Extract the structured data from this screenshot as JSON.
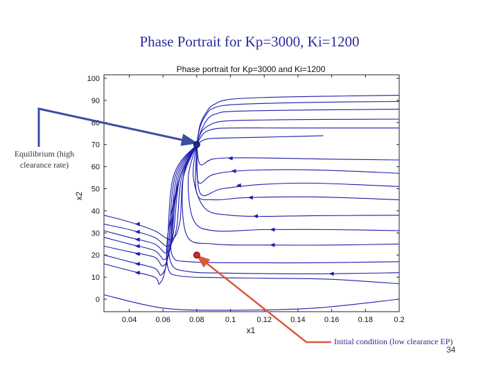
{
  "slide": {
    "title": "Phase Portrait for Kp=3000, Ki=1200",
    "page_number": "34"
  },
  "annotations": {
    "equilibrium": "Equilibrium (high clearance rate)",
    "initial_condition": "Initial condition (low clearance EP)",
    "equilibrium_point": [
      0.08,
      70
    ],
    "initial_point": [
      0.08,
      20
    ]
  },
  "colors": {
    "trajectory": "#1c1cae",
    "eq_arrow": "#3b4ea0",
    "init_arrow": "#d9593a",
    "eq_marker": "#1e2a8a",
    "init_marker": "#cc2a2a",
    "title": "#2a2a9e"
  },
  "chart_data": {
    "type": "line",
    "title": "Phase portrait for Kp=3000 and Ki=1200",
    "xlabel": "x1",
    "ylabel": "x2",
    "xlim": [
      0.025,
      0.2
    ],
    "ylim": [
      -5,
      100
    ],
    "xticks": [
      0.04,
      0.06,
      0.08,
      0.1,
      0.12,
      0.14,
      0.16,
      0.18,
      0.2
    ],
    "xtick_labels": [
      "0.04",
      "0.06",
      "0.08",
      "0.1",
      "0.12",
      "0.14",
      "0.16",
      "0.18",
      "0.2"
    ],
    "yticks": [
      0,
      10,
      20,
      30,
      40,
      50,
      60,
      70,
      80,
      90,
      100
    ],
    "ytick_labels": [
      "0",
      "10",
      "20",
      "30",
      "40",
      "50",
      "60",
      "70",
      "80",
      "90",
      "100"
    ],
    "grid": false,
    "series": [
      {
        "name": "traj-top-1",
        "points": [
          [
            0.08,
            70
          ],
          [
            0.082,
            79
          ],
          [
            0.086,
            85
          ],
          [
            0.09,
            88
          ],
          [
            0.1,
            90.5
          ],
          [
            0.13,
            91.5
          ],
          [
            0.17,
            92
          ],
          [
            0.2,
            92.3
          ]
        ]
      },
      {
        "name": "traj-top-2",
        "points": [
          [
            0.08,
            70
          ],
          [
            0.082,
            78
          ],
          [
            0.086,
            84
          ],
          [
            0.09,
            86.5
          ],
          [
            0.1,
            88
          ],
          [
            0.13,
            88.8
          ],
          [
            0.17,
            89.3
          ],
          [
            0.2,
            89.5
          ]
        ]
      },
      {
        "name": "traj-top-3",
        "points": [
          [
            0.08,
            70
          ],
          [
            0.083,
            77
          ],
          [
            0.087,
            82
          ],
          [
            0.092,
            84
          ],
          [
            0.1,
            85
          ],
          [
            0.13,
            85.5
          ],
          [
            0.17,
            85.8
          ],
          [
            0.2,
            86
          ]
        ]
      },
      {
        "name": "traj-top-4",
        "points": [
          [
            0.08,
            70
          ],
          [
            0.083,
            76
          ],
          [
            0.088,
            79
          ],
          [
            0.095,
            80.5
          ],
          [
            0.11,
            81
          ],
          [
            0.14,
            81.3
          ],
          [
            0.17,
            81.4
          ],
          [
            0.2,
            81.5
          ]
        ]
      },
      {
        "name": "traj-top-5",
        "points": [
          [
            0.08,
            70
          ],
          [
            0.084,
            75
          ],
          [
            0.09,
            77
          ],
          [
            0.1,
            77.5
          ],
          [
            0.13,
            77.5
          ],
          [
            0.17,
            77.5
          ],
          [
            0.2,
            77.5
          ]
        ]
      },
      {
        "name": "traj-top-6",
        "points": [
          [
            0.08,
            70
          ],
          [
            0.086,
            72.5
          ],
          [
            0.1,
            73
          ],
          [
            0.13,
            73.5
          ],
          [
            0.155,
            74
          ]
        ]
      },
      {
        "name": "traj-mid-1",
        "points": [
          [
            0.2,
            63
          ],
          [
            0.15,
            63.5
          ],
          [
            0.11,
            64
          ],
          [
            0.09,
            63.5
          ],
          [
            0.082,
            61
          ],
          [
            0.08,
            70
          ]
        ]
      },
      {
        "name": "traj-mid-2",
        "points": [
          [
            0.2,
            57
          ],
          [
            0.15,
            58.5
          ],
          [
            0.11,
            58.3
          ],
          [
            0.09,
            56.5
          ],
          [
            0.081,
            53
          ],
          [
            0.08,
            70
          ]
        ]
      },
      {
        "name": "traj-mid-3",
        "points": [
          [
            0.2,
            51
          ],
          [
            0.15,
            52.5
          ],
          [
            0.12,
            52
          ],
          [
            0.095,
            50
          ],
          [
            0.082,
            48
          ],
          [
            0.08,
            70
          ]
        ]
      },
      {
        "name": "traj-mid-4",
        "points": [
          [
            0.2,
            45
          ],
          [
            0.15,
            46.3
          ],
          [
            0.11,
            46
          ],
          [
            0.09,
            45
          ],
          [
            0.08,
            48
          ],
          [
            0.08,
            70
          ]
        ]
      },
      {
        "name": "traj-low-1",
        "points": [
          [
            0.2,
            38
          ],
          [
            0.15,
            37.8
          ],
          [
            0.12,
            37.5
          ],
          [
            0.1,
            38
          ],
          [
            0.085,
            41
          ],
          [
            0.078,
            55
          ],
          [
            0.08,
            70
          ]
        ]
      },
      {
        "name": "traj-low-2",
        "points": [
          [
            0.2,
            31
          ],
          [
            0.16,
            31.5
          ],
          [
            0.12,
            31.5
          ],
          [
            0.09,
            31
          ],
          [
            0.078,
            36
          ],
          [
            0.075,
            55
          ],
          [
            0.08,
            70
          ]
        ]
      },
      {
        "name": "traj-low-3",
        "points": [
          [
            0.2,
            25
          ],
          [
            0.16,
            24.5
          ],
          [
            0.12,
            24.5
          ],
          [
            0.09,
            25
          ],
          [
            0.074,
            29
          ],
          [
            0.072,
            55
          ],
          [
            0.08,
            70
          ]
        ]
      },
      {
        "name": "traj-left-1",
        "points": [
          [
            0.025,
            38
          ],
          [
            0.04,
            35
          ],
          [
            0.055,
            31
          ],
          [
            0.065,
            27
          ],
          [
            0.07,
            35
          ],
          [
            0.072,
            55
          ],
          [
            0.08,
            70
          ]
        ]
      },
      {
        "name": "traj-left-2",
        "points": [
          [
            0.025,
            34
          ],
          [
            0.04,
            31.5
          ],
          [
            0.055,
            28
          ],
          [
            0.063,
            24
          ],
          [
            0.068,
            32
          ],
          [
            0.071,
            55
          ],
          [
            0.08,
            70
          ]
        ]
      },
      {
        "name": "traj-left-3",
        "points": [
          [
            0.025,
            31
          ],
          [
            0.04,
            28
          ],
          [
            0.055,
            25
          ],
          [
            0.062,
            21
          ],
          [
            0.066,
            29
          ],
          [
            0.07,
            55
          ],
          [
            0.08,
            70
          ]
        ]
      },
      {
        "name": "traj-left-4",
        "points": [
          [
            0.025,
            28
          ],
          [
            0.04,
            25
          ],
          [
            0.055,
            22
          ],
          [
            0.061,
            18
          ],
          [
            0.065,
            26
          ],
          [
            0.069,
            55
          ],
          [
            0.08,
            70
          ]
        ]
      },
      {
        "name": "traj-left-5",
        "points": [
          [
            0.025,
            24
          ],
          [
            0.04,
            21.5
          ],
          [
            0.055,
            19
          ],
          [
            0.06,
            15
          ],
          [
            0.064,
            23
          ],
          [
            0.068,
            55
          ],
          [
            0.08,
            70
          ]
        ]
      },
      {
        "name": "traj-left-6",
        "points": [
          [
            0.025,
            20
          ],
          [
            0.04,
            17
          ],
          [
            0.055,
            14
          ],
          [
            0.059,
            11
          ],
          [
            0.063,
            20
          ],
          [
            0.067,
            55
          ],
          [
            0.08,
            70
          ]
        ]
      },
      {
        "name": "traj-left-7",
        "points": [
          [
            0.025,
            16
          ],
          [
            0.04,
            13
          ],
          [
            0.055,
            10
          ],
          [
            0.058,
            7
          ],
          [
            0.062,
            17
          ],
          [
            0.066,
            55
          ],
          [
            0.08,
            70
          ]
        ]
      },
      {
        "name": "traj-right-low-1",
        "points": [
          [
            0.2,
            17
          ],
          [
            0.15,
            16.5
          ],
          [
            0.1,
            16.5
          ],
          [
            0.075,
            17
          ],
          [
            0.066,
            19
          ],
          [
            0.065,
            30
          ],
          [
            0.07,
            55
          ],
          [
            0.08,
            70
          ]
        ]
      },
      {
        "name": "traj-right-low-2",
        "points": [
          [
            0.2,
            12
          ],
          [
            0.15,
            11.5
          ],
          [
            0.1,
            11.8
          ],
          [
            0.075,
            12.5
          ],
          [
            0.065,
            16
          ],
          [
            0.064,
            30
          ],
          [
            0.07,
            55
          ],
          [
            0.08,
            70
          ]
        ]
      },
      {
        "name": "traj-right-low-3",
        "points": [
          [
            0.2,
            7
          ],
          [
            0.16,
            9
          ],
          [
            0.12,
            9.5
          ],
          [
            0.09,
            9.8
          ],
          [
            0.07,
            10.5
          ],
          [
            0.063,
            14
          ],
          [
            0.063,
            30
          ],
          [
            0.07,
            55
          ],
          [
            0.08,
            70
          ]
        ]
      },
      {
        "name": "traj-bottom",
        "points": [
          [
            0.025,
            2
          ],
          [
            0.06,
            -4
          ],
          [
            0.1,
            -5
          ],
          [
            0.15,
            -4
          ],
          [
            0.2,
            0
          ]
        ]
      }
    ],
    "arrows": [
      {
        "series": "traj-mid-1",
        "at": [
          0.1,
          63.8
        ]
      },
      {
        "series": "traj-mid-2",
        "at": [
          0.102,
          58
        ]
      },
      {
        "series": "traj-mid-3",
        "at": [
          0.105,
          51.5
        ]
      },
      {
        "series": "traj-mid-4",
        "at": [
          0.112,
          46
        ]
      },
      {
        "series": "traj-low-1",
        "at": [
          0.115,
          37.6
        ]
      },
      {
        "series": "traj-low-2",
        "at": [
          0.125,
          31.5
        ]
      },
      {
        "series": "traj-low-3",
        "at": [
          0.125,
          24.5
        ]
      },
      {
        "series": "traj-left-1",
        "at": [
          0.045,
          34
        ]
      },
      {
        "series": "traj-left-2",
        "at": [
          0.045,
          30.5
        ]
      },
      {
        "series": "traj-left-3",
        "at": [
          0.045,
          27
        ]
      },
      {
        "series": "traj-left-4",
        "at": [
          0.045,
          24
        ]
      },
      {
        "series": "traj-left-5",
        "at": [
          0.045,
          20.5
        ]
      },
      {
        "series": "traj-left-6",
        "at": [
          0.045,
          16
        ]
      },
      {
        "series": "traj-left-7",
        "at": [
          0.045,
          12
        ]
      },
      {
        "series": "traj-right-low-2",
        "at": [
          0.16,
          11.5
        ]
      }
    ]
  }
}
